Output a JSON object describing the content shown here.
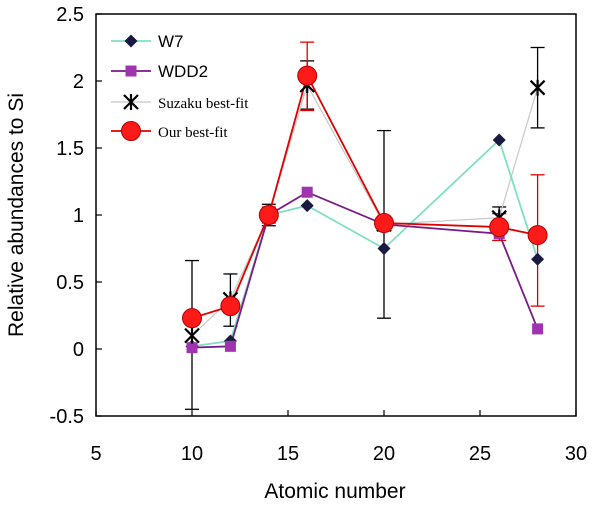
{
  "chart_data": {
    "type": "line",
    "title": "",
    "xlabel": "Atomic number",
    "ylabel": "Relative abundances to Si",
    "xlim": [
      5,
      30
    ],
    "ylim": [
      -0.5,
      2.5
    ],
    "xticks": [
      "5",
      "10",
      "15",
      "20",
      "25",
      "30"
    ],
    "yticks": [
      "-0.5",
      "0",
      "0.5",
      "1",
      "1.5",
      "2",
      "2.5"
    ],
    "grid": false,
    "legend_position": "top-left",
    "series": [
      {
        "name": "W7",
        "marker": "diamond",
        "line_color": "#7fe0c0",
        "marker_color": "#1a1a40",
        "x": [
          10,
          12,
          14,
          16,
          20,
          26,
          28
        ],
        "y": [
          0.02,
          0.06,
          1.0,
          1.07,
          0.75,
          1.56,
          0.67
        ]
      },
      {
        "name": "WDD2",
        "marker": "square",
        "line_color": "#7a1a8a",
        "marker_color": "#a033b0",
        "x": [
          10,
          12,
          14,
          16,
          20,
          26,
          28
        ],
        "y": [
          0.01,
          0.02,
          1.0,
          1.17,
          0.93,
          0.86,
          0.15
        ]
      },
      {
        "name": "Suzaku best-fit",
        "marker": "asterisk",
        "line_color": "#c8c8c8",
        "marker_color": "#000000",
        "x": [
          10,
          12,
          14,
          16,
          20,
          26,
          28
        ],
        "y": [
          0.1,
          0.37,
          1.0,
          1.97,
          0.93,
          0.98,
          1.95
        ],
        "err_low": [
          0.55,
          0.2,
          0.08,
          0.18,
          0.7,
          0.1,
          0.3
        ],
        "err_high": [
          0.56,
          0.19,
          0.08,
          0.18,
          0.7,
          0.08,
          0.3
        ]
      },
      {
        "name": "Our best-fit",
        "marker": "circle",
        "line_color": "#e00000",
        "marker_color": "#ff1a1a",
        "x": [
          10,
          12,
          14,
          16,
          20,
          26,
          28
        ],
        "y": [
          0.23,
          0.32,
          1.0,
          2.04,
          0.94,
          0.91,
          0.85
        ],
        "err_low": [
          0.04,
          0.05,
          0.06,
          0.26,
          0.05,
          0.1,
          0.53
        ],
        "err_high": [
          0.04,
          0.05,
          0.06,
          0.25,
          0.05,
          0.1,
          0.45
        ]
      }
    ]
  }
}
